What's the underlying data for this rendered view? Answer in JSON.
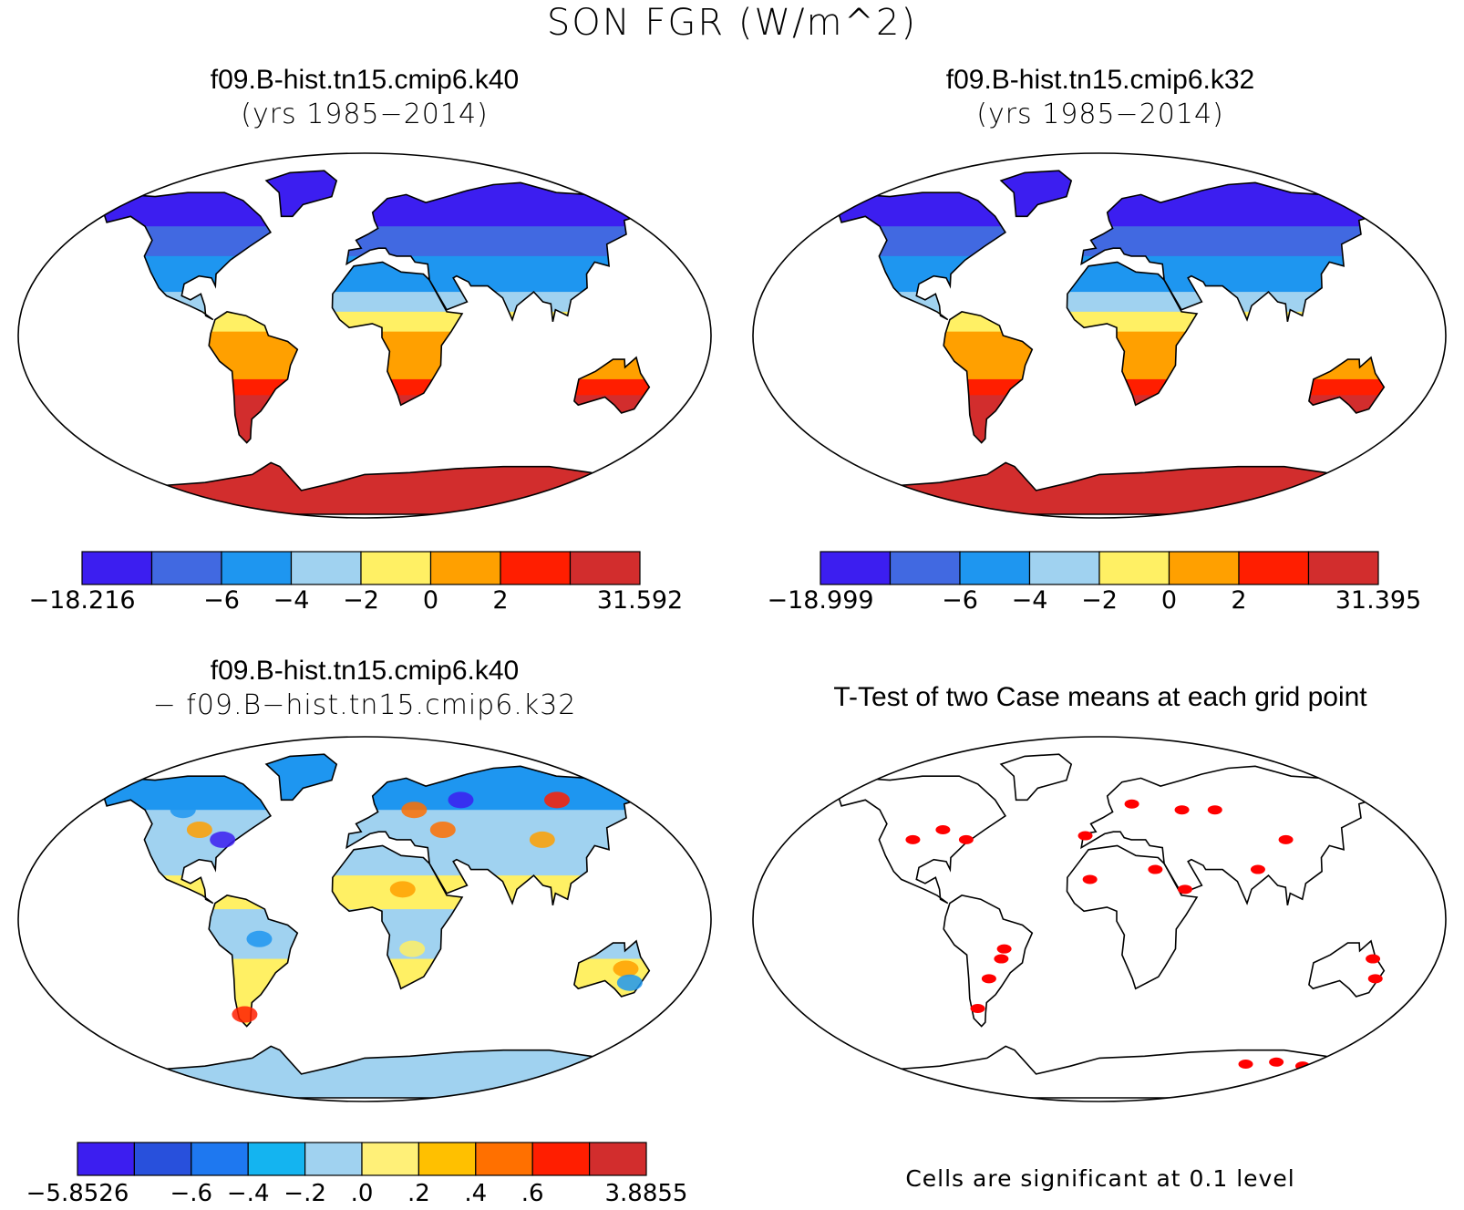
{
  "figure_title": "SON FGR (W/m^2)",
  "colors": {
    "blue1": "#3c1ef0",
    "blue2": "#4169e1",
    "blue3": "#1e96f0",
    "blue4": "#a0d2f0",
    "yellow": "#fff064",
    "orange": "#ffa000",
    "red": "#ff1e00",
    "darkred": "#d22d2d",
    "orange_light": "#ffc000",
    "orange_dark": "#ff7000",
    "significant": "#ff0000"
  },
  "panels": {
    "top_left": {
      "title_line1": "f09.B-hist.tn15.cmip6.k40",
      "title_line2": "(yrs 1985−2014)"
    },
    "top_right": {
      "title_line1": "f09.B-hist.tn15.cmip6.k32",
      "title_line2": "(yrs 1985−2014)"
    },
    "bottom_left": {
      "title_line1": "f09.B-hist.tn15.cmip6.k40",
      "title_line2": "− f09.B−hist.tn15.cmip6.k32"
    },
    "bottom_right": {
      "title": "T-Test of two Case means at each grid point",
      "note": "Cells are significant at 0.1 level"
    }
  },
  "colorbars": {
    "top_left": {
      "labels": [
        "−18.216",
        "",
        "−6",
        "−4",
        "−2",
        "0",
        "2",
        "",
        "31.592"
      ],
      "colors": [
        "#3c1ef0",
        "#4169e1",
        "#1e96f0",
        "#a0d2f0",
        "#fff064",
        "#ffa000",
        "#ff1e00",
        "#d22d2d"
      ]
    },
    "top_right": {
      "labels": [
        "−18.999",
        "",
        "−6",
        "−4",
        "−2",
        "0",
        "2",
        "",
        "31.395"
      ],
      "colors": [
        "#3c1ef0",
        "#4169e1",
        "#1e96f0",
        "#a0d2f0",
        "#fff064",
        "#ffa000",
        "#ff1e00",
        "#d22d2d"
      ]
    },
    "bottom_left": {
      "labels": [
        "−5.8526",
        "",
        "−.6",
        "−.4",
        "−.2",
        ".0",
        ".2",
        ".4",
        ".6",
        "",
        "3.8855"
      ],
      "colors": [
        "#3c1ef0",
        "#2850dc",
        "#1e78f0",
        "#14b4f0",
        "#a0d2f0",
        "#fff078",
        "#ffc000",
        "#ff7000",
        "#ff1e00",
        "#d22d2d"
      ]
    }
  }
}
